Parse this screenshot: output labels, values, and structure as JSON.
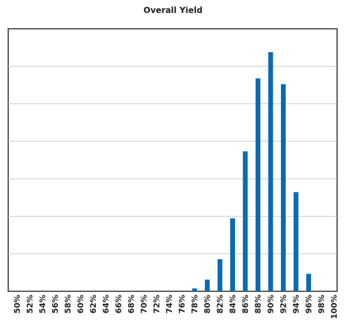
{
  "chart_data": {
    "type": "bar",
    "title": "Overall Yield",
    "xlabel": "",
    "ylabel": "",
    "categories": [
      "50%",
      "52%",
      "54%",
      "56%",
      "58%",
      "60%",
      "62%",
      "64%",
      "66%",
      "68%",
      "70%",
      "72%",
      "74%",
      "76%",
      "78%",
      "80%",
      "82%",
      "84%",
      "86%",
      "88%",
      "90%",
      "92%",
      "94%",
      "96%",
      "98%",
      "100%"
    ],
    "values": [
      0,
      0,
      0,
      0,
      0,
      0,
      0,
      0,
      0,
      0,
      0,
      0,
      0,
      0,
      0.5,
      2.0,
      5.5,
      12.5,
      24.0,
      36.5,
      41.0,
      35.5,
      17.0,
      3.0,
      0,
      0
    ],
    "ylim": [
      0,
      45
    ],
    "grid": true,
    "legend": "none",
    "bar_color": "#0a6ab5",
    "grid_color": "#c9c9c9",
    "axis_color": "#222222"
  }
}
